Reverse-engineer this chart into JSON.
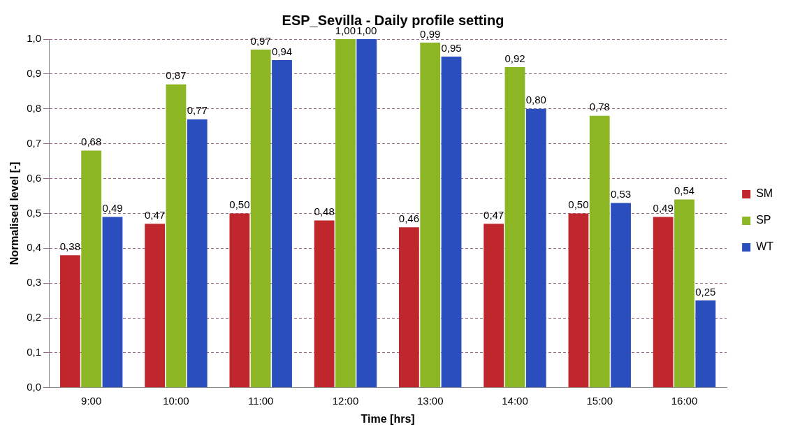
{
  "chart_data": {
    "type": "bar",
    "title": "ESP_Sevilla - Daily profile setting",
    "xlabel": "Time [hrs]",
    "ylabel": "Normalised level [-]",
    "categories": [
      "9:00",
      "10:00",
      "11:00",
      "12:00",
      "13:00",
      "14:00",
      "15:00",
      "16:00"
    ],
    "series": [
      {
        "name": "SM",
        "color": "#c0272d",
        "values": [
          0.38,
          0.47,
          0.5,
          0.48,
          0.46,
          0.47,
          0.5,
          0.49
        ],
        "value_labels": [
          "0,38",
          "0,47",
          "0,50",
          "0,48",
          "0,46",
          "0,47",
          "0,50",
          "0,49"
        ]
      },
      {
        "name": "SP",
        "color": "#8cb624",
        "values": [
          0.68,
          0.87,
          0.97,
          1.0,
          0.99,
          0.92,
          0.78,
          0.54
        ],
        "value_labels": [
          "0,68",
          "0,87",
          "0,97",
          "1,00",
          "0,99",
          "0,92",
          "0,78",
          "0,54"
        ]
      },
      {
        "name": "WT",
        "color": "#2a4ebd",
        "values": [
          0.49,
          0.77,
          0.94,
          1.0,
          0.95,
          0.8,
          0.53,
          0.25
        ],
        "value_labels": [
          "0,49",
          "0,77",
          "0,94",
          "1,00",
          "0,95",
          "0,80",
          "0,53",
          "0,25"
        ]
      }
    ],
    "ylim": [
      0,
      1
    ],
    "yticks": [
      {
        "value": 0,
        "label": "0,0"
      },
      {
        "value": 0.1,
        "label": "0,1"
      },
      {
        "value": 0.2,
        "label": "0,2"
      },
      {
        "value": 0.3,
        "label": "0,3"
      },
      {
        "value": 0.4,
        "label": "0,4"
      },
      {
        "value": 0.5,
        "label": "0,5"
      },
      {
        "value": 0.6,
        "label": "0,6"
      },
      {
        "value": 0.7,
        "label": "0,7"
      },
      {
        "value": 0.8,
        "label": "0,8"
      },
      {
        "value": 0.9,
        "label": "0,9"
      },
      {
        "value": 1,
        "label": "1,0"
      }
    ],
    "grid": "y",
    "legend": "right"
  }
}
